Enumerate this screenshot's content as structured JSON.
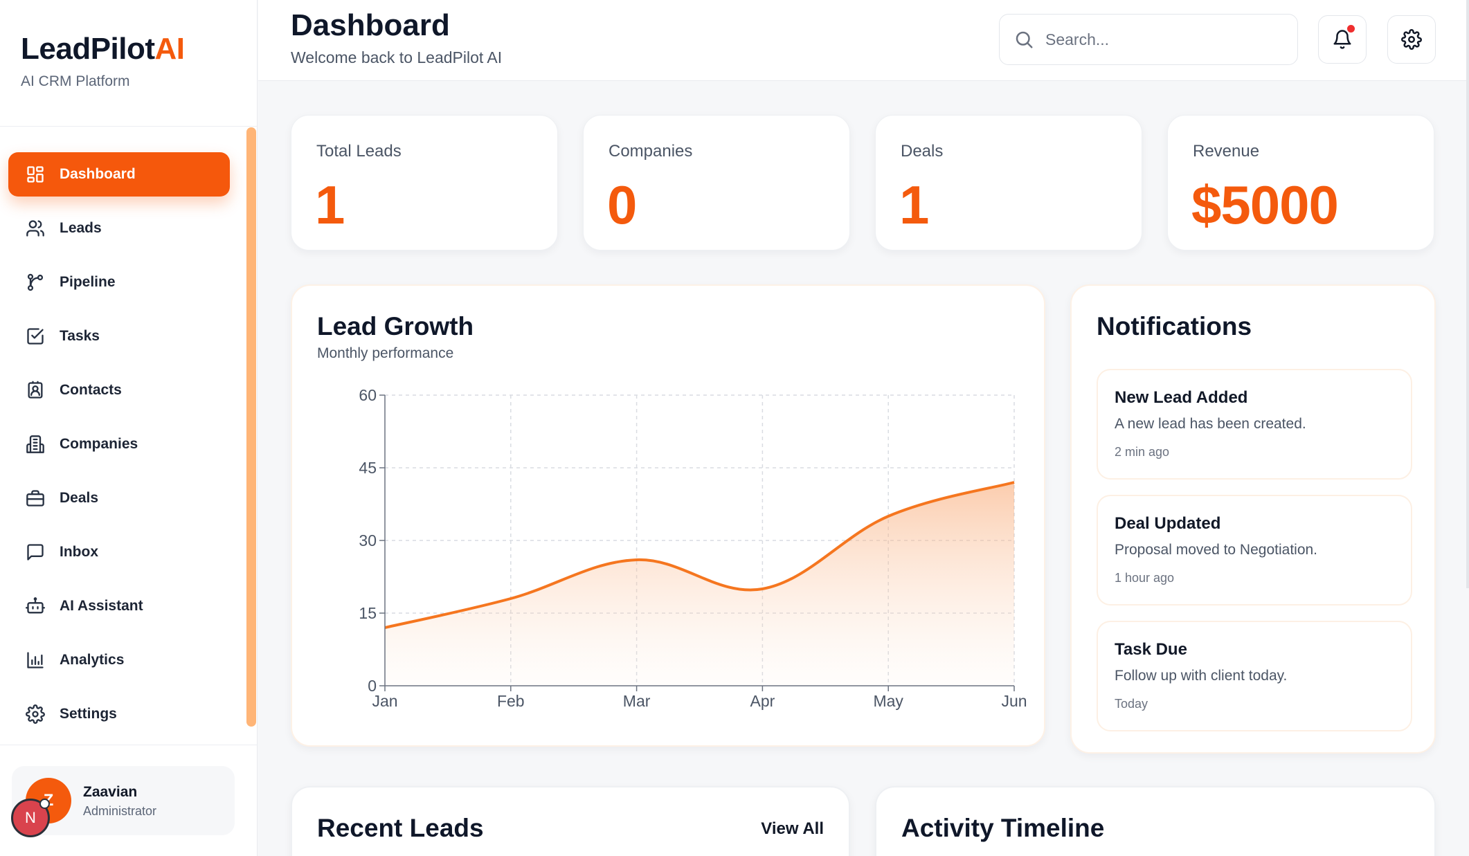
{
  "brand": {
    "name": "LeadPilot",
    "name_accent": "AI",
    "subtitle": "AI CRM Platform"
  },
  "sidebar": {
    "items": [
      {
        "label": "Dashboard",
        "icon": "dashboard-icon",
        "active": true
      },
      {
        "label": "Leads",
        "icon": "users-icon"
      },
      {
        "label": "Pipeline",
        "icon": "git-branch-icon"
      },
      {
        "label": "Tasks",
        "icon": "check-square-icon"
      },
      {
        "label": "Contacts",
        "icon": "contact-card-icon"
      },
      {
        "label": "Companies",
        "icon": "building-icon"
      },
      {
        "label": "Deals",
        "icon": "briefcase-icon"
      },
      {
        "label": "Inbox",
        "icon": "message-square-icon"
      },
      {
        "label": "AI Assistant",
        "icon": "bot-icon"
      },
      {
        "label": "Analytics",
        "icon": "bar-chart-icon"
      },
      {
        "label": "Settings",
        "icon": "gear-icon"
      }
    ]
  },
  "user": {
    "initial": "Z",
    "name": "Zaavian",
    "role": "Administrator",
    "overlay_initial": "N"
  },
  "header": {
    "title": "Dashboard",
    "subtitle": "Welcome back to LeadPilot AI",
    "search_placeholder": "Search..."
  },
  "stats": [
    {
      "label": "Total Leads",
      "value": "1"
    },
    {
      "label": "Companies",
      "value": "0"
    },
    {
      "label": "Deals",
      "value": "1"
    },
    {
      "label": "Revenue",
      "value": "$5000"
    }
  ],
  "lead_growth": {
    "title": "Lead Growth",
    "subtitle": "Monthly performance"
  },
  "chart_data": {
    "type": "area",
    "title": "Lead Growth",
    "subtitle": "Monthly performance",
    "categories": [
      "Jan",
      "Feb",
      "Mar",
      "Apr",
      "May",
      "Jun"
    ],
    "series": [
      {
        "values": [
          12,
          18,
          26,
          20,
          35,
          42
        ]
      }
    ],
    "ylim": [
      0,
      60
    ],
    "yticks": [
      "0",
      "15",
      "30",
      "45",
      "60"
    ],
    "grid": true,
    "color": "#f5761f"
  },
  "notifications": {
    "title": "Notifications",
    "items": [
      {
        "title": "New Lead Added",
        "body": "A new lead has been created.",
        "time": "2 min ago"
      },
      {
        "title": "Deal Updated",
        "body": "Proposal moved to Negotiation.",
        "time": "1 hour ago"
      },
      {
        "title": "Task Due",
        "body": "Follow up with client today.",
        "time": "Today"
      }
    ]
  },
  "recent_leads": {
    "title": "Recent Leads",
    "view_all": "View All"
  },
  "activity": {
    "title": "Activity Timeline"
  },
  "colors": {
    "accent": "#f45a0d",
    "accent_light": "#ffb577",
    "notification_dot": "#ef2e2e"
  }
}
